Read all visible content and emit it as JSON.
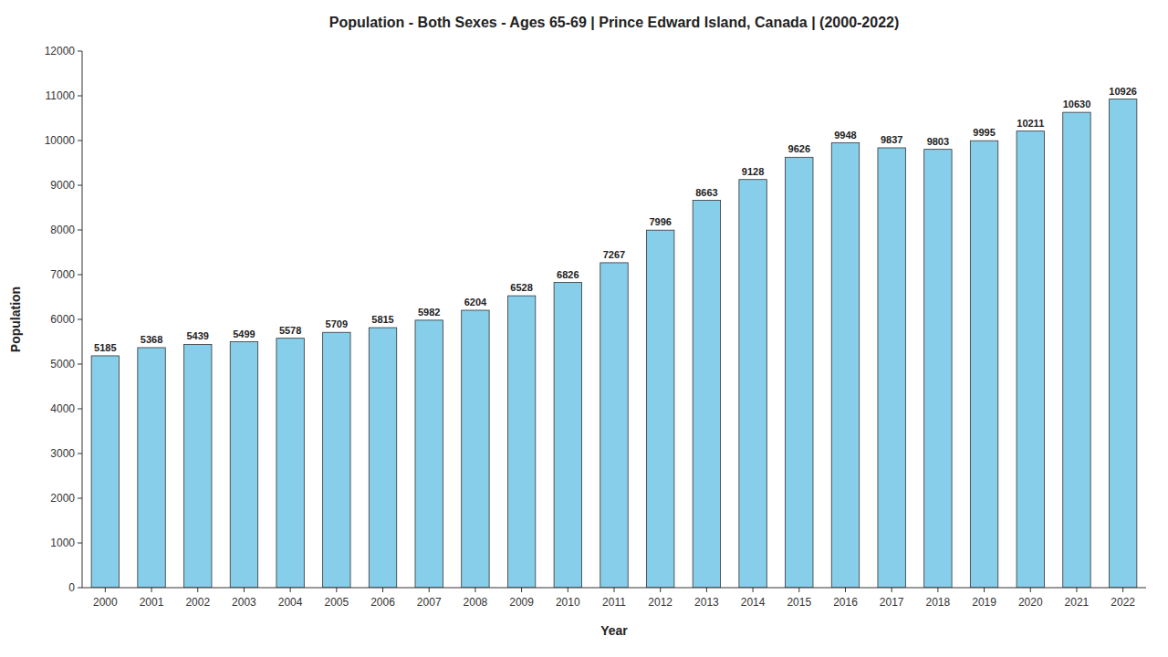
{
  "chart_data": {
    "type": "bar",
    "title": "Population - Both Sexes - Ages 65-69 | Prince Edward Island, Canada |  (2000-2022)",
    "x_label": "Year",
    "y_label": "Population",
    "categories": [
      "2000",
      "2001",
      "2002",
      "2003",
      "2004",
      "2005",
      "2006",
      "2007",
      "2008",
      "2009",
      "2010",
      "2011",
      "2012",
      "2013",
      "2014",
      "2015",
      "2016",
      "2017",
      "2018",
      "2019",
      "2020",
      "2021",
      "2022"
    ],
    "values": [
      5185,
      5368,
      5439,
      5499,
      5578,
      5709,
      5815,
      5982,
      6204,
      6528,
      6826,
      7267,
      7996,
      8663,
      9128,
      9626,
      9948,
      9837,
      9803,
      9995,
      10211,
      10630,
      10926
    ],
    "color": "#87CEEB",
    "ylim": [
      0,
      12000
    ],
    "yticks": [
      0,
      1000,
      2000,
      3000,
      4000,
      5000,
      6000,
      7000,
      8000,
      9000,
      10000,
      11000,
      12000
    ],
    "grid": false,
    "data_labels": true
  }
}
